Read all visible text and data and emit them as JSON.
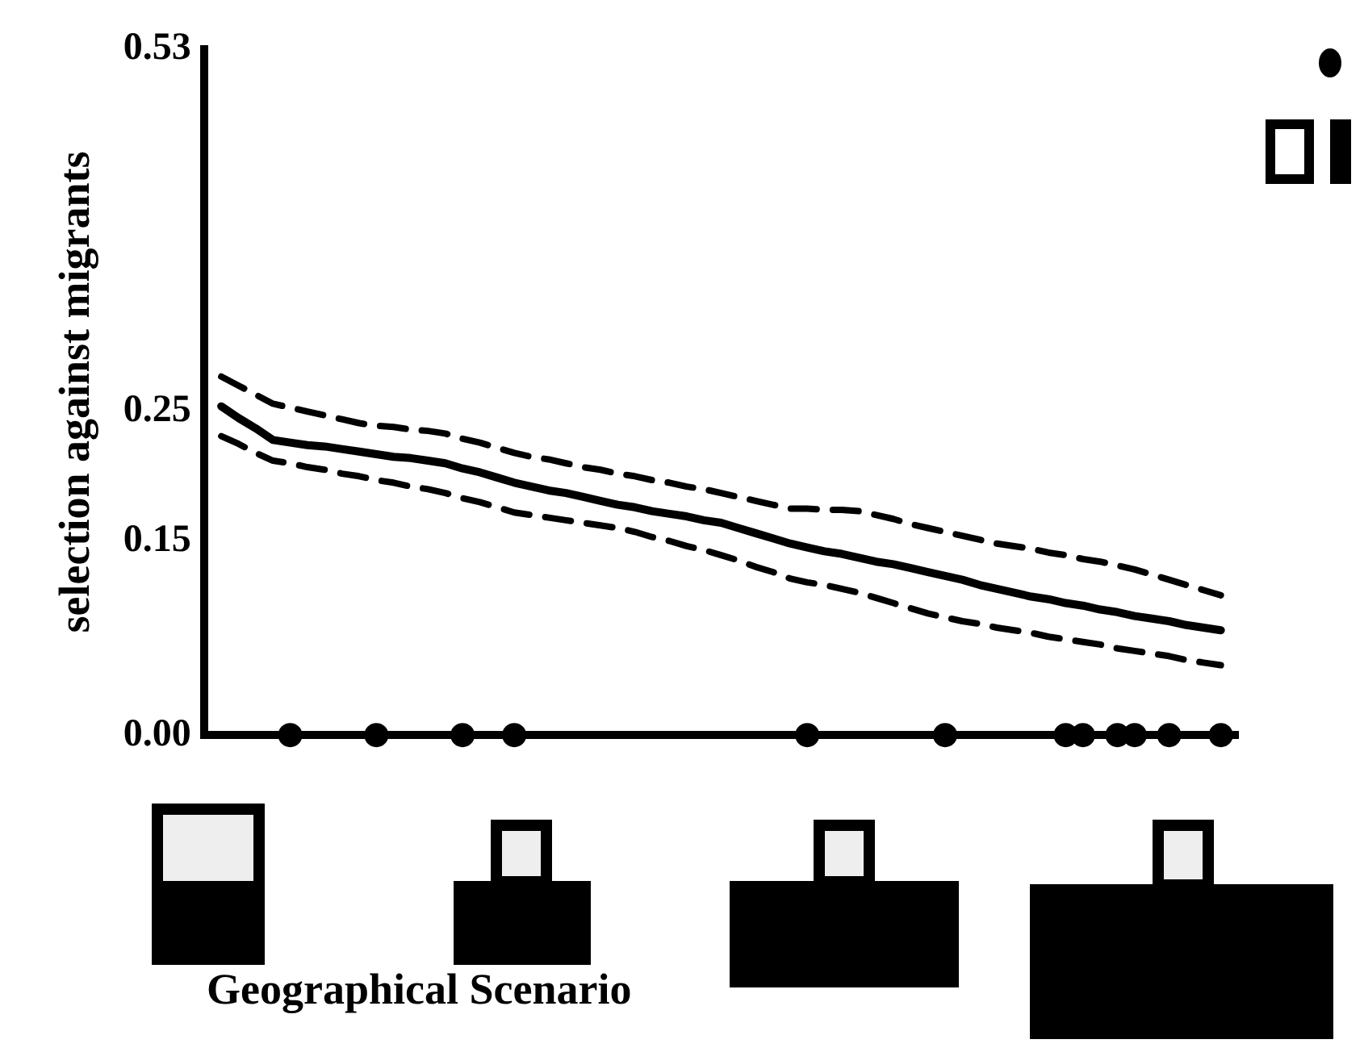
{
  "chart_data": {
    "type": "line",
    "xlabel": "Geographical Scenario",
    "ylabel": "selection against migrants",
    "categories": [
      null,
      null,
      null,
      null,
      null,
      null,
      null,
      null,
      null,
      null,
      null,
      null,
      null,
      null,
      null,
      null,
      null,
      null,
      null,
      null,
      null,
      null,
      null,
      null,
      null,
      null,
      null,
      null,
      null,
      null,
      null,
      null,
      null,
      null,
      null,
      null,
      null,
      null,
      null,
      null,
      null,
      null,
      null,
      null,
      null,
      null,
      null,
      null,
      null,
      null,
      null,
      null,
      null,
      null,
      null,
      null,
      null,
      null,
      null,
      null,
      null
    ],
    "ylim": [
      0,
      0.53
    ],
    "yticks": [
      {
        "value": 0,
        "label": "0.00"
      },
      0.15,
      0.25,
      0.53
    ],
    "tick_labels": "y",
    "grid": false,
    "legend": false,
    "series": [
      {
        "color": "#000000",
        "line_style": "solid",
        "marker": "none",
        "values": [
          null,
          0.254,
          0.245,
          0.237,
          0.228,
          0.226,
          0.224,
          0.223,
          0.221,
          0.219,
          0.217,
          0.215,
          0.214,
          0.212,
          0.21,
          0.206,
          0.203,
          0.199,
          0.195,
          0.192,
          0.189,
          0.187,
          0.184,
          0.181,
          0.178,
          0.176,
          0.173,
          0.171,
          0.169,
          0.166,
          0.164,
          0.16,
          0.156,
          0.152,
          0.148,
          0.145,
          0.142,
          0.14,
          0.137,
          0.134,
          0.132,
          0.129,
          0.126,
          0.123,
          0.12,
          0.116,
          0.113,
          0.11,
          0.107,
          0.105,
          0.102,
          0.1,
          0.097,
          0.095,
          0.092,
          0.09,
          0.088,
          0.085,
          0.083,
          0.081,
          null
        ]
      },
      {
        "color": "#000000",
        "line_style": "dashed",
        "marker": "none",
        "values": [
          null,
          0.277,
          0.27,
          0.263,
          0.256,
          0.253,
          0.25,
          0.247,
          0.244,
          0.241,
          0.239,
          0.238,
          0.236,
          0.235,
          0.233,
          0.229,
          0.226,
          0.222,
          0.218,
          0.215,
          0.213,
          0.21,
          0.207,
          0.205,
          0.202,
          0.2,
          0.197,
          0.195,
          0.192,
          0.19,
          0.187,
          0.184,
          0.181,
          0.178,
          0.175,
          0.175,
          0.174,
          0.174,
          0.173,
          0.17,
          0.167,
          0.163,
          0.16,
          0.157,
          0.154,
          0.151,
          0.148,
          0.146,
          0.144,
          0.141,
          0.139,
          0.136,
          0.134,
          0.131,
          0.128,
          0.124,
          0.12,
          0.116,
          0.112,
          0.108,
          null
        ]
      },
      {
        "color": "#000000",
        "line_style": "dashed",
        "marker": "none",
        "values": [
          null,
          0.231,
          0.225,
          0.218,
          0.212,
          0.21,
          0.207,
          0.205,
          0.202,
          0.2,
          0.197,
          0.195,
          0.192,
          0.19,
          0.187,
          0.183,
          0.18,
          0.176,
          0.172,
          0.17,
          0.168,
          0.166,
          0.164,
          0.162,
          0.16,
          0.157,
          0.153,
          0.15,
          0.146,
          0.143,
          0.139,
          0.135,
          0.13,
          0.126,
          0.121,
          0.118,
          0.116,
          0.113,
          0.11,
          0.106,
          0.102,
          0.098,
          0.094,
          0.091,
          0.088,
          0.086,
          0.083,
          0.081,
          0.079,
          0.076,
          0.074,
          0.072,
          0.07,
          0.067,
          0.065,
          0.063,
          0.061,
          0.058,
          0.056,
          0.054,
          null
        ]
      },
      {
        "type": "scatter",
        "color": "#000000",
        "marker": "circle",
        "values": [
          null,
          null,
          null,
          null,
          null,
          0,
          null,
          null,
          null,
          null,
          0,
          null,
          null,
          null,
          null,
          0,
          null,
          null,
          0,
          null,
          null,
          null,
          null,
          null,
          null,
          null,
          null,
          null,
          null,
          null,
          null,
          null,
          null,
          null,
          null,
          0,
          null,
          null,
          null,
          null,
          null,
          null,
          null,
          0,
          null,
          null,
          null,
          null,
          null,
          null,
          0,
          0,
          null,
          0,
          0,
          null,
          0,
          null,
          null,
          0,
          null
        ]
      }
    ]
  }
}
